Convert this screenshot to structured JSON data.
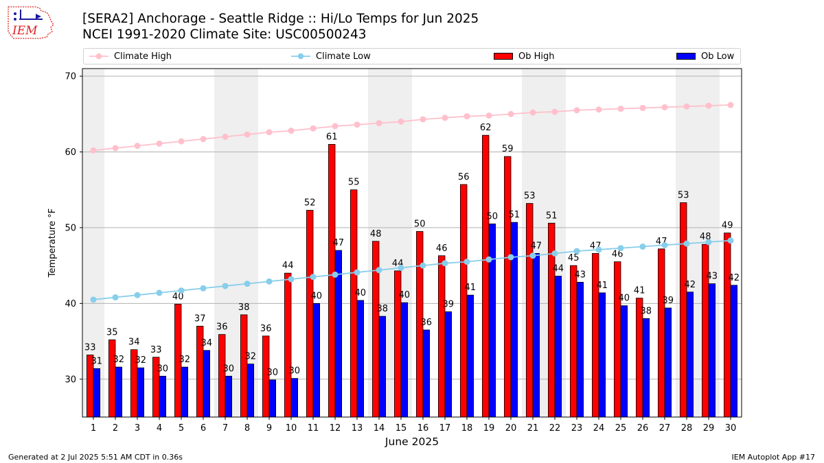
{
  "header": {
    "title_line1": "[SERA2] Anchorage - Seattle Ridge :: Hi/Lo Temps for Jun 2025",
    "title_line2": "NCEI 1991-2020 Climate Site: USC00500243",
    "logo_text": "IEM"
  },
  "footer": {
    "generated": "Generated at 2 Jul 2025 5:51 AM CDT in 0.36s",
    "app": "IEM Autoplot App #17"
  },
  "colors": {
    "climate_high": "#ffc0cb",
    "climate_low": "#87ceeb",
    "ob_high": "#ff0000",
    "ob_low": "#0000ff",
    "weekend_shade": "#efefef",
    "grid": "#b0b0b0"
  },
  "chart_data": {
    "type": "bar",
    "xlabel": "June 2025",
    "ylabel": "Temperature °F",
    "ylim": [
      25,
      71
    ],
    "yticks": [
      30,
      40,
      50,
      60,
      70
    ],
    "grid": "horizontal",
    "legend_position": "top",
    "categories": [
      "1",
      "2",
      "3",
      "4",
      "5",
      "6",
      "7",
      "8",
      "9",
      "10",
      "11",
      "12",
      "13",
      "14",
      "15",
      "16",
      "17",
      "18",
      "19",
      "20",
      "21",
      "22",
      "23",
      "24",
      "25",
      "26",
      "27",
      "28",
      "29",
      "30"
    ],
    "shaded_days": [
      1,
      7,
      8,
      14,
      15,
      21,
      22,
      28,
      29
    ],
    "series": [
      {
        "name": "Climate High",
        "kind": "line",
        "values": [
          60.2,
          60.5,
          60.8,
          61.1,
          61.4,
          61.7,
          62.0,
          62.3,
          62.6,
          62.8,
          63.1,
          63.4,
          63.6,
          63.8,
          64.0,
          64.3,
          64.5,
          64.7,
          64.8,
          65.0,
          65.2,
          65.3,
          65.5,
          65.6,
          65.7,
          65.8,
          65.9,
          66.0,
          66.1,
          66.2
        ]
      },
      {
        "name": "Climate Low",
        "kind": "line",
        "values": [
          40.5,
          40.8,
          41.1,
          41.4,
          41.7,
          42.0,
          42.3,
          42.6,
          42.9,
          43.2,
          43.5,
          43.8,
          44.1,
          44.4,
          44.7,
          45.0,
          45.3,
          45.5,
          45.8,
          46.1,
          46.3,
          46.6,
          46.9,
          47.1,
          47.3,
          47.5,
          47.7,
          47.9,
          48.1,
          48.3
        ]
      },
      {
        "name": "Ob High",
        "kind": "bar",
        "values": [
          33.2,
          35.2,
          33.9,
          32.9,
          39.9,
          37.0,
          35.9,
          38.5,
          35.7,
          44.0,
          52.3,
          61.0,
          55.0,
          48.2,
          44.3,
          49.5,
          46.3,
          55.7,
          62.2,
          59.4,
          53.2,
          50.6,
          45.0,
          46.6,
          45.5,
          40.7,
          47.2,
          53.3,
          47.8,
          49.3
        ],
        "labels": [
          "33",
          "35",
          "34",
          "33",
          "40",
          "37",
          "36",
          "38",
          "36",
          "44",
          "52",
          "61",
          "55",
          "48",
          "44",
          "50",
          "46",
          "56",
          "62",
          "59",
          "53",
          "51",
          "45",
          "47",
          "46",
          "41",
          "47",
          "53",
          "48",
          "49"
        ]
      },
      {
        "name": "Ob Low",
        "kind": "bar",
        "values": [
          31.4,
          31.6,
          31.5,
          30.4,
          31.6,
          33.8,
          30.4,
          32.0,
          29.9,
          30.1,
          40.0,
          47.0,
          40.4,
          38.3,
          40.1,
          36.5,
          38.9,
          41.1,
          50.5,
          50.7,
          46.6,
          43.6,
          42.8,
          41.4,
          39.7,
          38.0,
          39.4,
          41.5,
          42.6,
          42.4
        ],
        "labels": [
          "31",
          "32",
          "32",
          "30",
          "32",
          "34",
          "30",
          "32",
          "30",
          "30",
          "40",
          "47",
          "40",
          "38",
          "40",
          "36",
          "39",
          "41",
          "50",
          "51",
          "47",
          "44",
          "43",
          "41",
          "40",
          "38",
          "39",
          "42",
          "43",
          "42"
        ]
      }
    ]
  }
}
